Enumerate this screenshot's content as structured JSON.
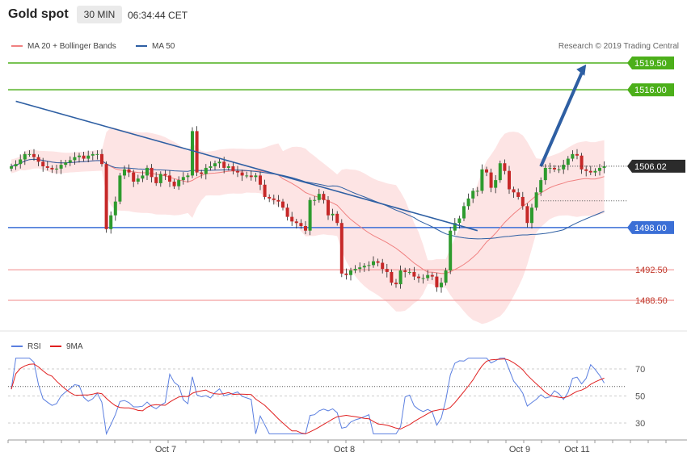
{
  "header": {
    "title": "Gold spot",
    "timeframe": "30 MIN",
    "time": "06:34:44 CET"
  },
  "legend": {
    "ma20": {
      "label": "MA 20 + Bollinger Bands",
      "color": "#f08080"
    },
    "ma50": {
      "label": "MA 50",
      "color": "#2e5fa3"
    }
  },
  "credit": "Research © 2019 Trading Central",
  "rsi_legend": {
    "rsi": {
      "label": "RSI",
      "color": "#5b7fe0"
    },
    "ma9": {
      "label": "9MA",
      "color": "#e02020"
    }
  },
  "chart_data": [
    {
      "type": "candlestick",
      "xlabels": [
        "Oct 7",
        "Oct 8",
        "Oct 9",
        "Oct 11"
      ],
      "ylim": [
        1485.7,
        1523.7
      ],
      "last_price": 1506.02,
      "levels": [
        {
          "value": 1519.5,
          "label": "1519.50",
          "kind": "resistance"
        },
        {
          "value": 1516.0,
          "label": "1516.00",
          "kind": "resistance"
        },
        {
          "value": 1498.0,
          "label": "1498.00",
          "kind": "pivot"
        },
        {
          "value": 1492.5,
          "label": "1492.50",
          "kind": "support"
        },
        {
          "value": 1488.5,
          "label": "1488.50",
          "kind": "support"
        }
      ],
      "trendline": {
        "from": [
          1,
          1514.5
        ],
        "to": [
          103,
          1497.6
        ]
      },
      "projection": {
        "from": [
          117,
          1506.0
        ],
        "to": [
          127,
          1519.3
        ]
      },
      "closes": [
        1506.0,
        1506.3,
        1506.9,
        1507.6,
        1507.6,
        1507.2,
        1506.6,
        1506.0,
        1505.8,
        1505.6,
        1505.7,
        1506.2,
        1506.5,
        1506.8,
        1507.2,
        1507.4,
        1507.0,
        1507.4,
        1507.6,
        1507.6,
        1506.3,
        1497.8,
        1499.6,
        1501.4,
        1504.8,
        1505.6,
        1505.2,
        1504.0,
        1504.4,
        1504.8,
        1505.8,
        1504.6,
        1503.8,
        1505.0,
        1504.8,
        1504.0,
        1503.4,
        1504.2,
        1504.6,
        1504.8,
        1510.6,
        1505.2,
        1505.0,
        1505.8,
        1506.0,
        1506.4,
        1506.6,
        1505.8,
        1506.0,
        1505.4,
        1505.2,
        1504.8,
        1504.8,
        1504.6,
        1504.8,
        1503.6,
        1502.0,
        1501.8,
        1501.6,
        1501.4,
        1500.6,
        1499.4,
        1498.8,
        1498.6,
        1498.2,
        1497.6,
        1501.6,
        1501.6,
        1502.4,
        1501.6,
        1499.6,
        1499.8,
        1498.6,
        1492.0,
        1491.8,
        1492.4,
        1492.6,
        1492.8,
        1493.0,
        1493.1,
        1493.6,
        1493.4,
        1492.6,
        1492.2,
        1490.8,
        1490.6,
        1492.4,
        1492.2,
        1492.2,
        1491.6,
        1491.4,
        1491.4,
        1491.8,
        1491.6,
        1490.2,
        1490.8,
        1492.4,
        1497.6,
        1498.6,
        1499.2,
        1500.8,
        1501.8,
        1502.8,
        1502.8,
        1505.6,
        1505.2,
        1503.2,
        1504.2,
        1506.4,
        1505.4,
        1503.0,
        1502.6,
        1502.0,
        1500.8,
        1498.6,
        1500.6,
        1502.6,
        1504.2,
        1505.8,
        1505.8,
        1505.6,
        1505.6,
        1506.2,
        1507.0,
        1507.6,
        1507.4,
        1505.6,
        1505.4,
        1505.2,
        1505.4,
        1505.8,
        1506.0
      ]
    },
    {
      "type": "line",
      "name": "RSI",
      "yticks": [
        30,
        50,
        70
      ],
      "reference_line": 57,
      "ylim": [
        17,
        85
      ]
    }
  ]
}
